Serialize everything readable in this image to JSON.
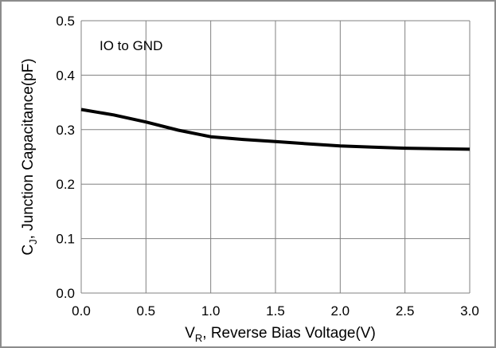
{
  "chart_data": {
    "type": "line",
    "annotation": "IO to GND",
    "xlabel": {
      "main": "V",
      "sub": "R",
      "rest": ", Reverse Bias Voltage(V)"
    },
    "ylabel": {
      "main": "C",
      "sub": "J",
      "rest": ", Junction Capacitance(pF)"
    },
    "xlim": [
      0.0,
      3.0
    ],
    "ylim": [
      0.0,
      0.5
    ],
    "xticks": [
      0.0,
      0.5,
      1.0,
      1.5,
      2.0,
      2.5,
      3.0
    ],
    "yticks": [
      0.0,
      0.1,
      0.2,
      0.3,
      0.4,
      0.5
    ],
    "xtick_labels": [
      "0.0",
      "0.5",
      "1.0",
      "1.5",
      "2.0",
      "2.5",
      "3.0"
    ],
    "ytick_labels": [
      "0.0",
      "0.1",
      "0.2",
      "0.3",
      "0.4",
      "0.5"
    ],
    "grid": true,
    "line_color": "#000000",
    "grid_color": "#808080",
    "series": [
      {
        "x": [
          0.0,
          0.25,
          0.5,
          0.75,
          1.0,
          1.25,
          1.5,
          1.75,
          2.0,
          2.25,
          2.5,
          2.75,
          3.0
        ],
        "y": [
          0.337,
          0.327,
          0.314,
          0.299,
          0.287,
          0.282,
          0.278,
          0.274,
          0.27,
          0.268,
          0.266,
          0.265,
          0.264
        ]
      }
    ]
  }
}
